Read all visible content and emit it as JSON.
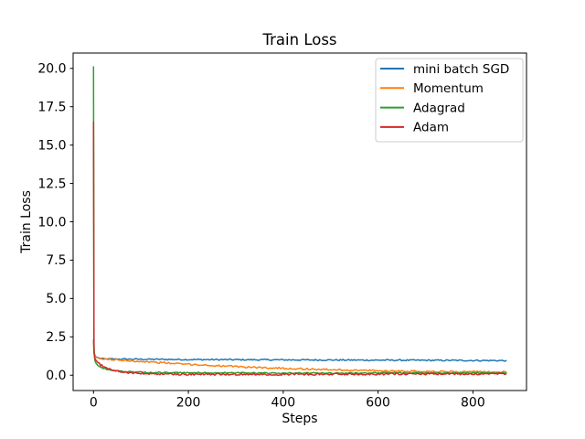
{
  "figure": {
    "background": "#ffffff",
    "frame_color": "#000000",
    "legend": {
      "border_color": "#cccccc",
      "background": "#ffffff"
    }
  },
  "chart_data": {
    "type": "line",
    "title": "Train Loss",
    "xlabel": "Steps",
    "ylabel": "Train Loss",
    "xlim": [
      -43,
      913
    ],
    "ylim": [
      -1.0,
      21.0
    ],
    "xticks": [
      0,
      200,
      400,
      600,
      800
    ],
    "yticks": [
      0.0,
      2.5,
      5.0,
      7.5,
      10.0,
      12.5,
      15.0,
      17.5,
      20.0
    ],
    "grid": false,
    "legend_position": "upper right",
    "series": [
      {
        "name": "mini batch SGD",
        "color": "#1f77b4",
        "x": [
          0,
          1,
          2,
          3,
          5,
          10,
          20,
          50,
          100,
          150,
          200,
          250,
          300,
          350,
          400,
          450,
          500,
          550,
          600,
          650,
          700,
          750,
          800,
          840,
          870
        ],
        "y": [
          2.3,
          1.6,
          1.4,
          1.3,
          1.2,
          1.12,
          1.06,
          1.05,
          1.04,
          1.03,
          1.02,
          1.015,
          1.01,
          1.005,
          1.0,
          0.995,
          0.99,
          0.985,
          0.98,
          0.975,
          0.97,
          0.965,
          0.96,
          0.955,
          0.95
        ]
      },
      {
        "name": "Momentum",
        "color": "#ff7f0e",
        "x": [
          0,
          1,
          2,
          3,
          5,
          10,
          20,
          50,
          100,
          150,
          200,
          250,
          300,
          350,
          400,
          450,
          500,
          550,
          600,
          650,
          700,
          750,
          800,
          840,
          870
        ],
        "y": [
          2.2,
          1.5,
          1.35,
          1.25,
          1.18,
          1.1,
          1.05,
          1.0,
          0.9,
          0.8,
          0.71,
          0.63,
          0.56,
          0.5,
          0.45,
          0.4,
          0.36,
          0.32,
          0.29,
          0.27,
          0.25,
          0.23,
          0.22,
          0.21,
          0.2
        ]
      },
      {
        "name": "Adagrad",
        "color": "#2ca02c",
        "x": [
          0,
          1,
          2,
          3,
          5,
          7,
          10,
          15,
          20,
          25,
          30,
          40,
          50,
          60,
          70,
          80,
          90,
          100,
          120,
          140,
          160,
          180,
          200,
          250,
          300,
          350,
          400,
          450,
          500,
          550,
          600,
          650,
          700,
          750,
          800,
          840,
          870
        ],
        "y": [
          20.1,
          2.0,
          1.2,
          0.95,
          0.8,
          0.72,
          0.63,
          0.53,
          0.46,
          0.41,
          0.37,
          0.31,
          0.27,
          0.25,
          0.23,
          0.21,
          0.2,
          0.19,
          0.18,
          0.17,
          0.17,
          0.16,
          0.16,
          0.15,
          0.15,
          0.14,
          0.14,
          0.14,
          0.14,
          0.14,
          0.15,
          0.15,
          0.15,
          0.15,
          0.15,
          0.15,
          0.15
        ]
      },
      {
        "name": "Adam",
        "color": "#d62728",
        "x": [
          0,
          1,
          2,
          3,
          5,
          7,
          10,
          15,
          20,
          25,
          30,
          40,
          50,
          60,
          70,
          80,
          90,
          100,
          120,
          140,
          160,
          180,
          200,
          250,
          300,
          350,
          400,
          450,
          500,
          550,
          600,
          650,
          700,
          750,
          800,
          840,
          870
        ],
        "y": [
          16.5,
          1.45,
          1.25,
          1.1,
          0.98,
          0.9,
          0.8,
          0.68,
          0.58,
          0.5,
          0.44,
          0.34,
          0.27,
          0.22,
          0.18,
          0.15,
          0.13,
          0.11,
          0.09,
          0.08,
          0.07,
          0.07,
          0.06,
          0.06,
          0.06,
          0.07,
          0.06,
          0.07,
          0.07,
          0.07,
          0.08,
          0.08,
          0.08,
          0.08,
          0.09,
          0.09,
          0.09
        ]
      }
    ]
  }
}
